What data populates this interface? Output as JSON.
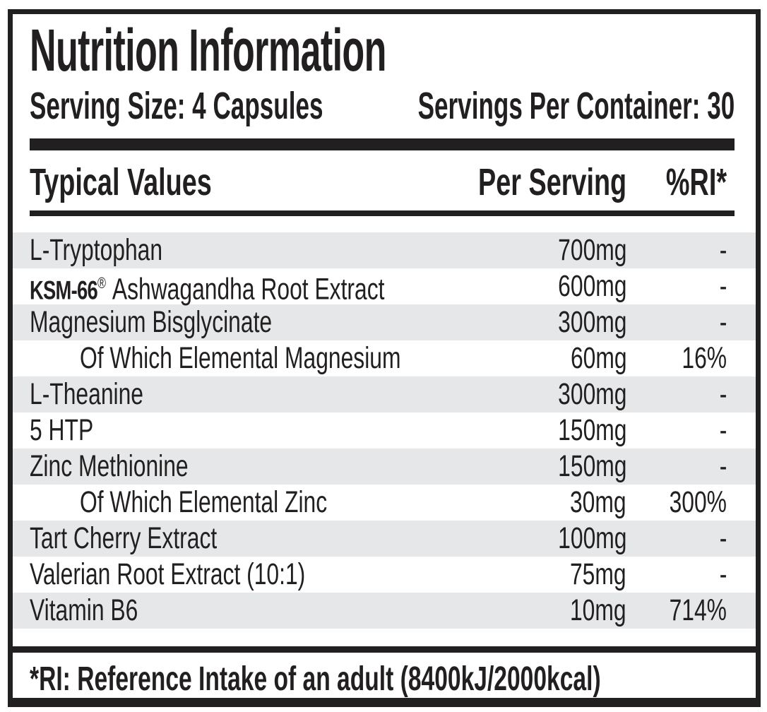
{
  "label": {
    "title": "Nutrition Information",
    "serving_size": "Serving Size: 4 Capsules",
    "servings_per_container": "Servings Per Container: 30",
    "columns": {
      "name": "Typical Values",
      "per_serving": "Per Serving",
      "ri": "%RI*"
    },
    "rows": [
      {
        "name": "L-Tryptophan",
        "amount": "700mg",
        "ri": "-"
      },
      {
        "brand": "KSM-66",
        "reg": "®",
        "name": "Ashwagandha Root Extract",
        "amount": "600mg",
        "ri": "-"
      },
      {
        "name": "Magnesium Bisglycinate",
        "amount": "300mg",
        "ri": "-"
      },
      {
        "name": "Of Which Elemental Magnesium",
        "amount": "60mg",
        "ri": "16%"
      },
      {
        "name": "L-Theanine",
        "amount": "300mg",
        "ri": "-"
      },
      {
        "name": "5 HTP",
        "amount": "150mg",
        "ri": "-"
      },
      {
        "name": "Zinc Methionine",
        "amount": "150mg",
        "ri": "-"
      },
      {
        "name": "Of Which Elemental Zinc",
        "amount": "30mg",
        "ri": "300%"
      },
      {
        "name": "Tart Cherry Extract",
        "amount": "100mg",
        "ri": "-"
      },
      {
        "name": "Valerian Root Extract (10:1)",
        "amount": "75mg",
        "ri": "-"
      },
      {
        "name": "Vitamin B6",
        "amount": "10mg",
        "ri": "714%"
      }
    ],
    "footnote": "*RI: Reference Intake of an adult (8400kJ/2000kcal)",
    "colors": {
      "text": "#221f20",
      "border": "#221f20",
      "shaded_row": "#e6e7e8",
      "background": "#ffffff"
    }
  }
}
